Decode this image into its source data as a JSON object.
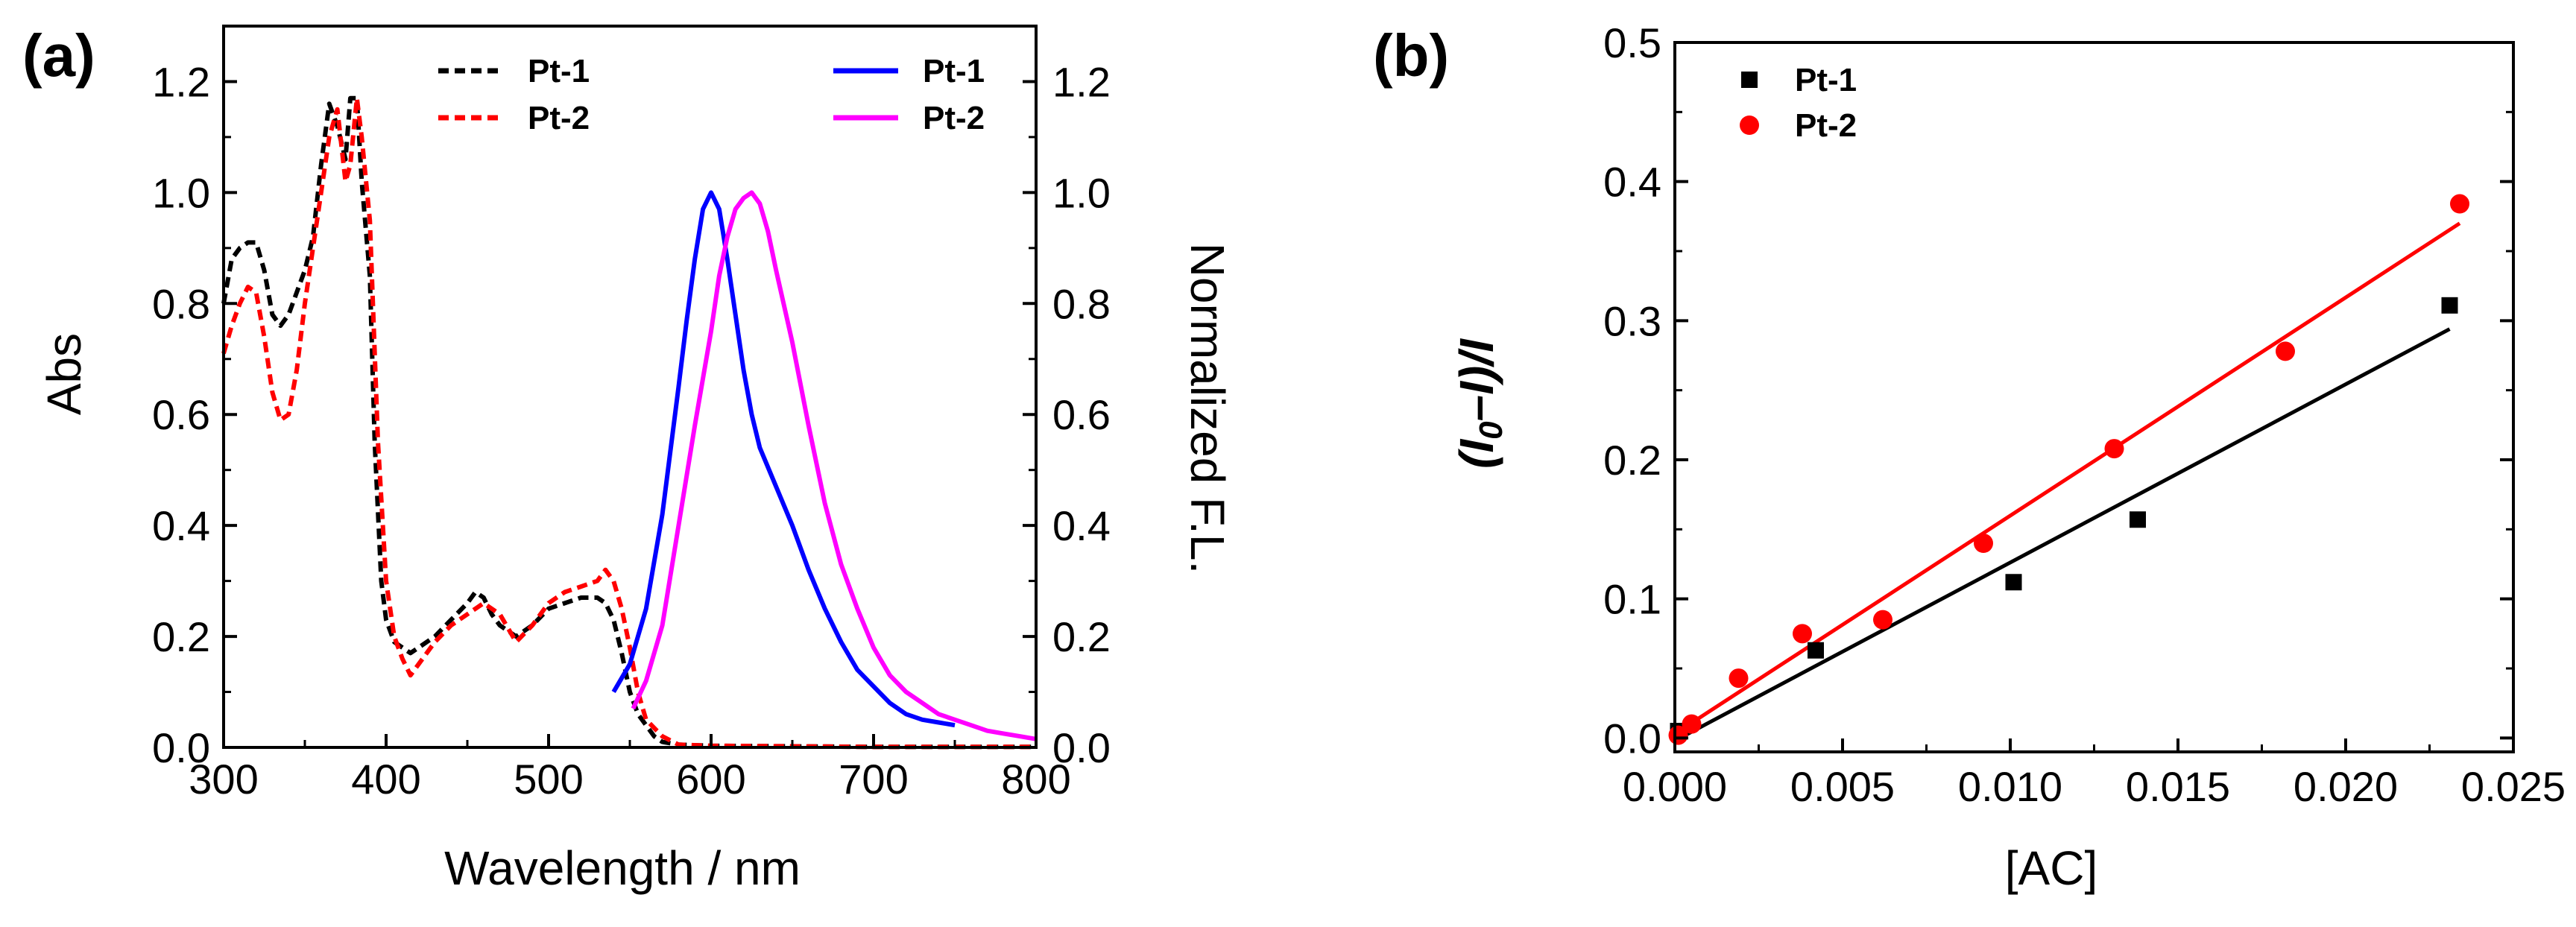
{
  "colors": {
    "black": "#000000",
    "red": "#ff0000",
    "blue": "#0000ff",
    "magenta": "#ff00ff"
  },
  "chart_data": [
    {
      "panel": "(a)",
      "type": "line",
      "xlabel": "Wavelength / nm",
      "ylabel_left": "Abs",
      "ylabel_right": "Normalized F.L.",
      "xlim": [
        300,
        800
      ],
      "ylim_left": [
        0,
        1.3
      ],
      "ylim_right": [
        0,
        1.3
      ],
      "xticks": [
        "300",
        "400",
        "500",
        "600",
        "700",
        "800"
      ],
      "yticks_left": [
        "0.0",
        "0.2",
        "0.4",
        "0.6",
        "0.8",
        "1.0",
        "1.2"
      ],
      "yticks_right": [
        "0.0",
        "0.2",
        "0.4",
        "0.6",
        "0.8",
        "1.0",
        "1.2"
      ],
      "legend": [
        {
          "label": "Pt-1",
          "style": "dashed",
          "color": "#000000"
        },
        {
          "label": "Pt-2",
          "style": "dashed",
          "color": "#ff0000"
        },
        {
          "label": "Pt-1",
          "style": "solid",
          "color": "#0000ff"
        },
        {
          "label": "Pt-2",
          "style": "solid",
          "color": "#ff00ff"
        }
      ],
      "series": [
        {
          "name": "Pt-1",
          "kind": "absorption",
          "axis": "left",
          "color": "#000000",
          "dash": true,
          "x": [
            300,
            305,
            310,
            315,
            320,
            325,
            330,
            335,
            340,
            345,
            350,
            355,
            360,
            365,
            370,
            375,
            378,
            382,
            385,
            390,
            393,
            397,
            400,
            405,
            410,
            415,
            420,
            430,
            440,
            450,
            455,
            460,
            465,
            470,
            480,
            490,
            500,
            510,
            520,
            530,
            535,
            540,
            545,
            550,
            555,
            560,
            565,
            570,
            580,
            600,
            650,
            700,
            750,
            800
          ],
          "y": [
            0.8,
            0.88,
            0.9,
            0.91,
            0.91,
            0.86,
            0.78,
            0.76,
            0.78,
            0.82,
            0.86,
            0.92,
            1.05,
            1.16,
            1.12,
            1.06,
            1.17,
            1.17,
            1.02,
            0.85,
            0.55,
            0.3,
            0.23,
            0.19,
            0.18,
            0.17,
            0.18,
            0.2,
            0.23,
            0.26,
            0.28,
            0.27,
            0.24,
            0.22,
            0.2,
            0.22,
            0.25,
            0.26,
            0.27,
            0.27,
            0.26,
            0.23,
            0.17,
            0.1,
            0.06,
            0.04,
            0.02,
            0.01,
            0.005,
            0.003,
            0.002,
            0.001,
            0.001,
            0.001
          ]
        },
        {
          "name": "Pt-2",
          "kind": "absorption",
          "axis": "left",
          "color": "#ff0000",
          "dash": true,
          "x": [
            300,
            305,
            310,
            315,
            320,
            325,
            330,
            335,
            340,
            345,
            350,
            355,
            360,
            365,
            370,
            375,
            378,
            382,
            385,
            390,
            395,
            400,
            405,
            410,
            415,
            420,
            430,
            440,
            450,
            460,
            470,
            480,
            490,
            500,
            510,
            520,
            530,
            535,
            540,
            545,
            550,
            555,
            560,
            570,
            580,
            600,
            650,
            700,
            750,
            800
          ],
          "y": [
            0.71,
            0.76,
            0.8,
            0.83,
            0.82,
            0.74,
            0.64,
            0.59,
            0.6,
            0.68,
            0.8,
            0.9,
            1.0,
            1.1,
            1.15,
            1.02,
            1.05,
            1.17,
            1.1,
            0.95,
            0.55,
            0.3,
            0.2,
            0.16,
            0.13,
            0.15,
            0.19,
            0.22,
            0.24,
            0.26,
            0.24,
            0.19,
            0.22,
            0.26,
            0.28,
            0.29,
            0.3,
            0.32,
            0.3,
            0.25,
            0.18,
            0.1,
            0.05,
            0.02,
            0.005,
            0.003,
            0.002,
            0.001,
            0.001,
            0.001
          ]
        },
        {
          "name": "Pt-1",
          "kind": "emission",
          "axis": "right",
          "color": "#0000ff",
          "dash": false,
          "x": [
            540,
            550,
            560,
            570,
            580,
            585,
            590,
            595,
            600,
            605,
            610,
            615,
            620,
            625,
            630,
            640,
            650,
            660,
            670,
            680,
            690,
            700,
            710,
            720,
            730,
            740,
            750
          ],
          "y": [
            0.1,
            0.15,
            0.25,
            0.42,
            0.65,
            0.77,
            0.88,
            0.97,
            1.0,
            0.97,
            0.88,
            0.78,
            0.68,
            0.6,
            0.54,
            0.47,
            0.4,
            0.32,
            0.25,
            0.19,
            0.14,
            0.11,
            0.08,
            0.06,
            0.05,
            0.045,
            0.04
          ]
        },
        {
          "name": "Pt-2",
          "kind": "emission",
          "axis": "right",
          "color": "#ff00ff",
          "dash": false,
          "x": [
            552,
            560,
            570,
            580,
            590,
            600,
            605,
            610,
            615,
            620,
            625,
            630,
            635,
            640,
            650,
            660,
            670,
            680,
            690,
            700,
            710,
            720,
            730,
            740,
            750,
            760,
            770,
            780,
            790,
            800
          ],
          "y": [
            0.07,
            0.12,
            0.22,
            0.4,
            0.58,
            0.75,
            0.85,
            0.92,
            0.97,
            0.99,
            1.0,
            0.98,
            0.93,
            0.86,
            0.73,
            0.58,
            0.44,
            0.33,
            0.25,
            0.18,
            0.13,
            0.1,
            0.08,
            0.06,
            0.05,
            0.04,
            0.03,
            0.025,
            0.02,
            0.015
          ]
        }
      ]
    },
    {
      "panel": "(b)",
      "type": "scatter",
      "xlabel": "[AC]",
      "ylabel": "(I0–I)/I",
      "ylabel_parts": {
        "open": "(I",
        "sub": "0",
        "rest": "–I)/I"
      },
      "xlim": [
        0,
        0.025
      ],
      "ylim": [
        -0.01,
        0.5
      ],
      "xticks": [
        "0.000",
        "0.005",
        "0.010",
        "0.015",
        "0.020",
        "0.025"
      ],
      "yticks": [
        "0.0",
        "0.1",
        "0.2",
        "0.3",
        "0.4",
        "0.5"
      ],
      "legend": [
        {
          "label": "Pt-1",
          "marker": "square",
          "color": "#000000"
        },
        {
          "label": "Pt-2",
          "marker": "circle",
          "color": "#ff0000"
        }
      ],
      "series": [
        {
          "name": "Pt-1",
          "marker": "square",
          "color": "#000000",
          "x": [
            0.0001,
            0.0042,
            0.0101,
            0.0138,
            0.0231
          ],
          "y": [
            0.005,
            0.063,
            0.112,
            0.157,
            0.311
          ],
          "fit": {
            "x": [
              0.0,
              0.0231
            ],
            "y": [
              -0.002,
              0.294
            ]
          }
        },
        {
          "name": "Pt-2",
          "marker": "circle",
          "color": "#ff0000",
          "x": [
            0.0001,
            0.0005,
            0.0019,
            0.0038,
            0.0062,
            0.0092,
            0.0131,
            0.0182,
            0.0234
          ],
          "y": [
            0.002,
            0.01,
            0.043,
            0.075,
            0.085,
            0.14,
            0.208,
            0.278,
            0.384
          ],
          "fit": {
            "x": [
              0.0,
              0.0234
            ],
            "y": [
              0.003,
              0.37
            ]
          }
        }
      ]
    }
  ]
}
